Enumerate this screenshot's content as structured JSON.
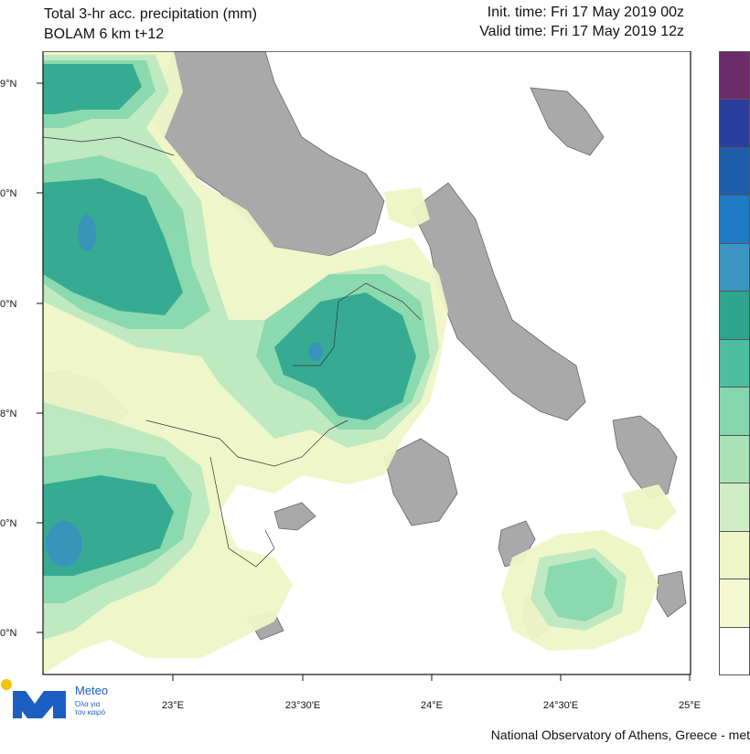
{
  "header": {
    "title_line1": "Total 3-hr acc. precipitation (mm)",
    "title_line2": "BOLAM 6 km t+12",
    "init_time": "Init. time: Fri 17 May 2019 00z",
    "valid_time": "Valid time: Fri 17 May 2019 12z"
  },
  "map": {
    "lat_labels": [
      "9°N",
      "0°N",
      "0°N",
      "8°N",
      "0°N",
      "0°N"
    ],
    "lon_labels": [
      "23°E",
      "23°30'E",
      "24°E",
      "24°30'E",
      "25°E"
    ],
    "colors": {
      "land_grey": "#a9a9a9",
      "sea_white": "#ffffff",
      "precip_very_light": "#eef6c6",
      "precip_light": "#dcf1c0",
      "precip_green1": "#b9e8bf",
      "precip_green2": "#85d7ad",
      "precip_teal1": "#4cbfa0",
      "precip_teal2": "#2ea58f",
      "precip_blue1": "#3b8fbf"
    }
  },
  "legend": {
    "colors": [
      "#6b2c69",
      "#2a3e9e",
      "#1d5ea8",
      "#1e7ac2",
      "#3b96c4",
      "#2ea58f",
      "#4cbfa0",
      "#85d7ad",
      "#a9e3b6",
      "#cfeec6",
      "#eef6c6",
      "#f4f9d3",
      "#ffffff"
    ]
  },
  "footer": {
    "credit": "National Observatory of Athens, Greece - met",
    "logo_word": "Meteo",
    "logo_sub1": "Όλα για",
    "logo_sub2": "τον καιρό"
  }
}
